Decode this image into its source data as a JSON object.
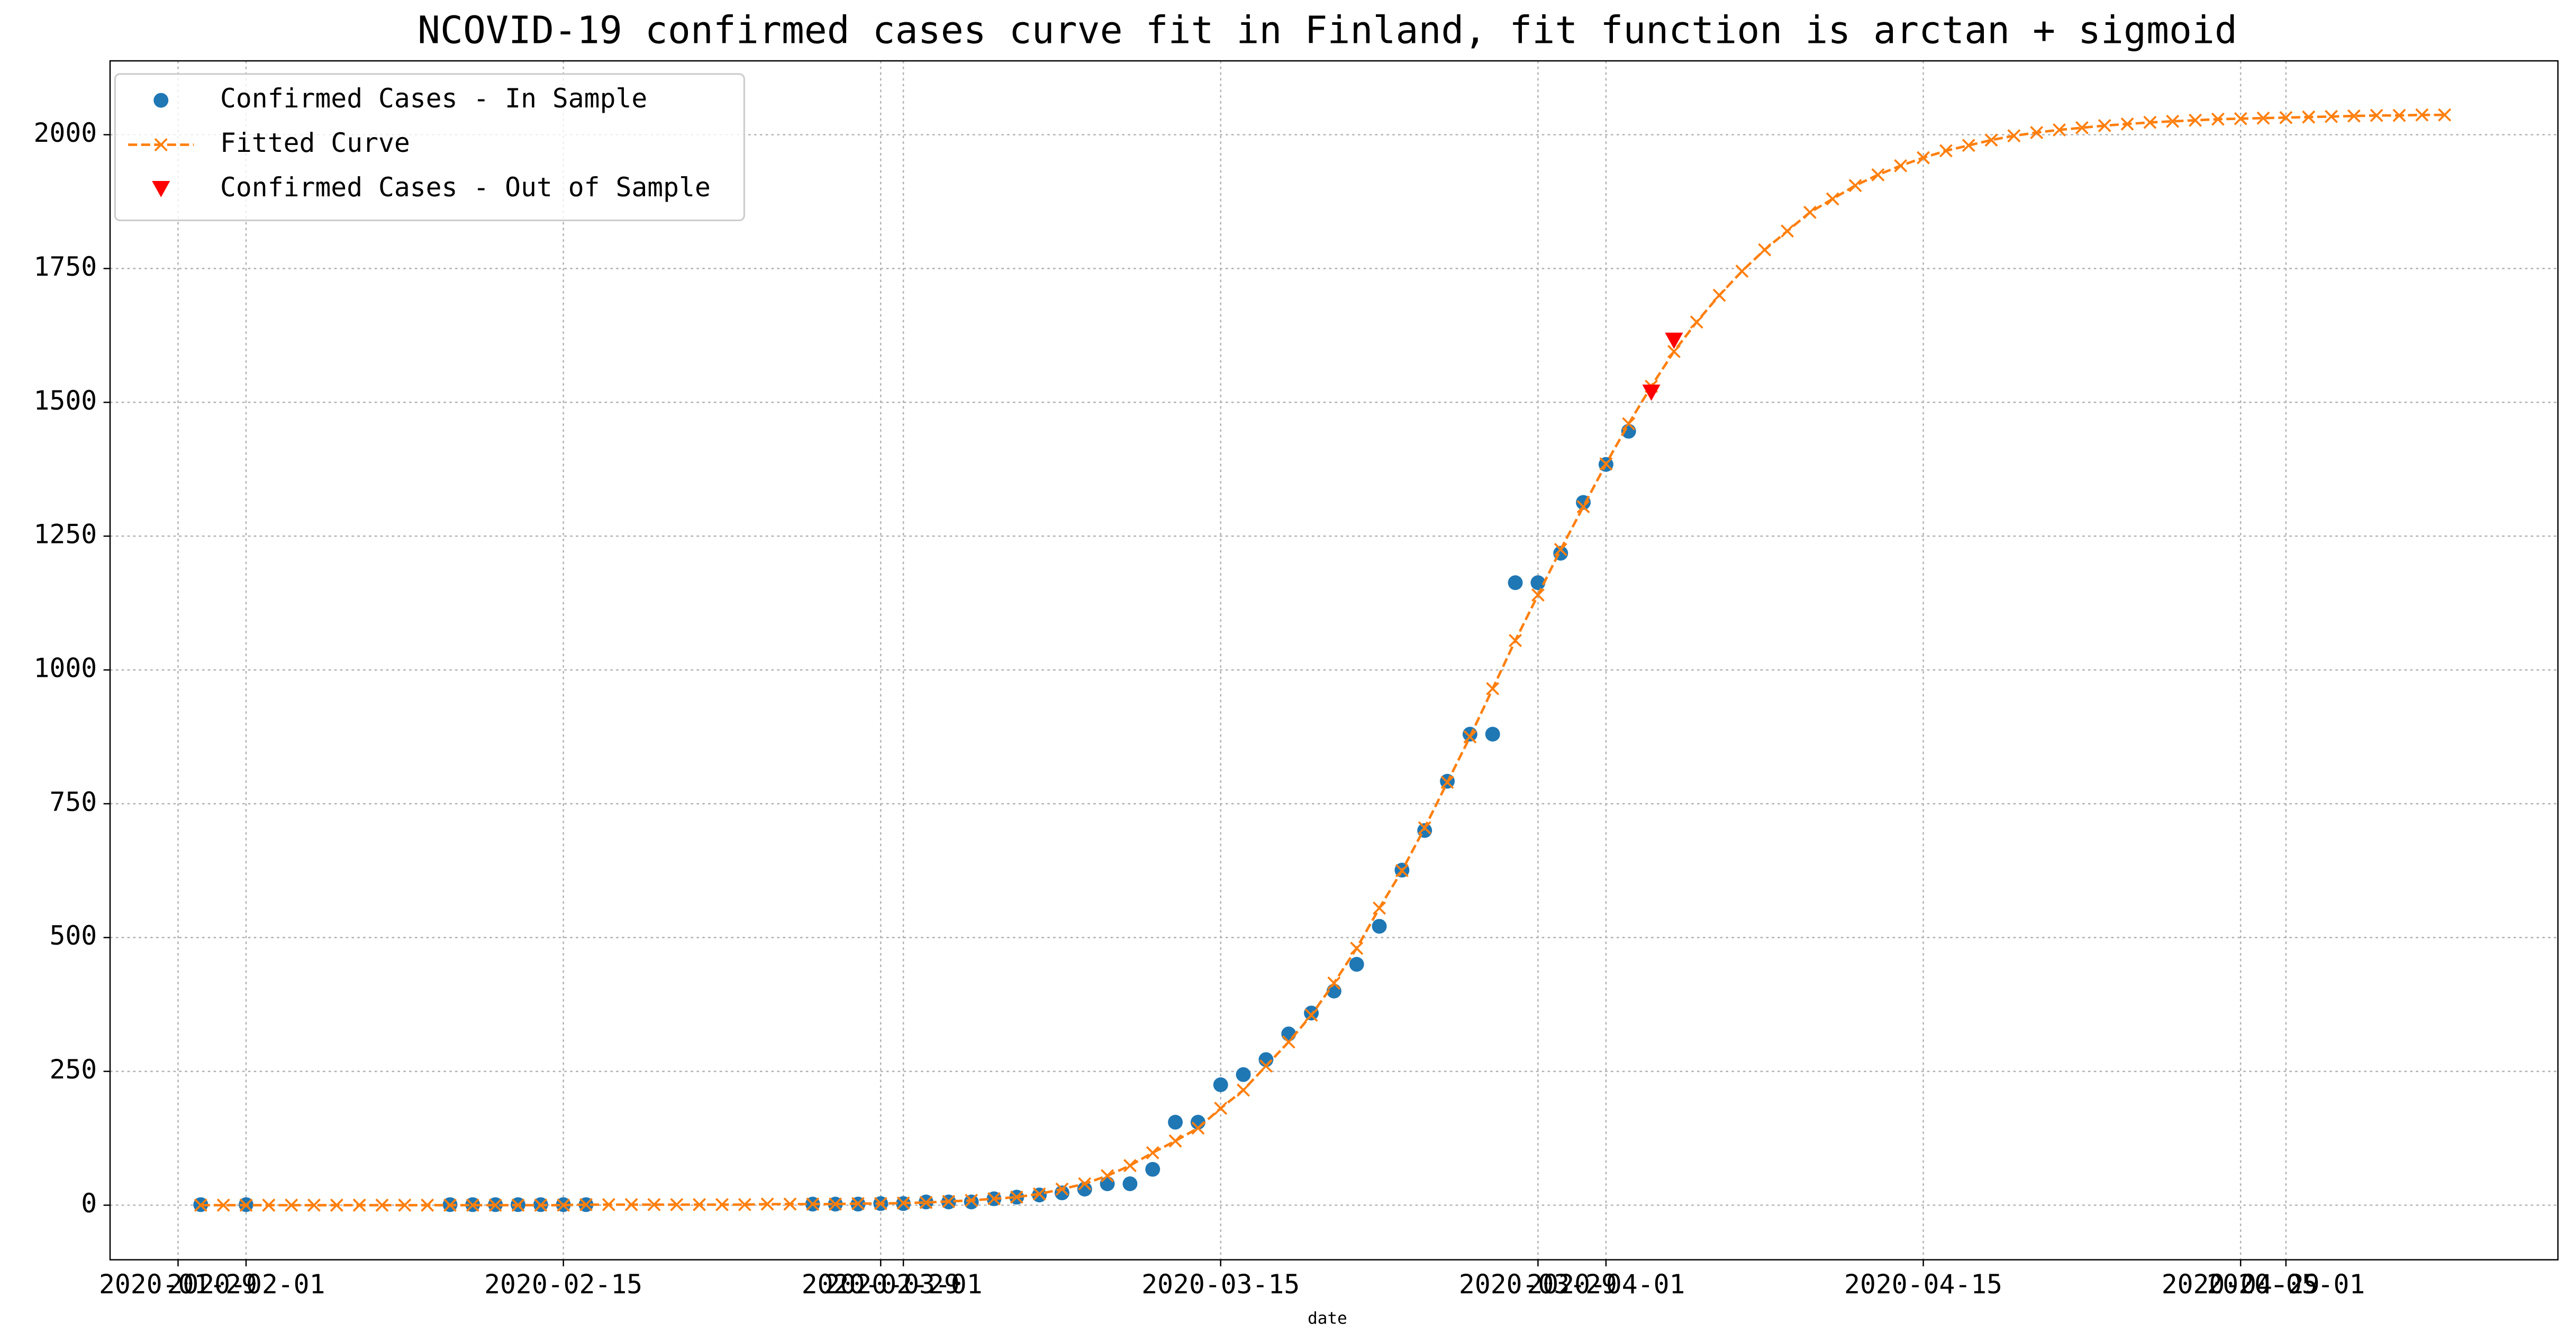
{
  "chart_data": {
    "type": "line",
    "title": "NCOVID-19 confirmed cases curve fit in Finland, fit function is arctan + sigmoid",
    "x_label": "date",
    "xlim": [
      "2020-01-26",
      "2020-05-13"
    ],
    "xticks": [
      "2020-01-29",
      "2020-02-01",
      "2020-02-15",
      "2020-02-29",
      "2020-03-01",
      "2020-03-15",
      "2020-03-29",
      "2020-04-01",
      "2020-04-15",
      "2020-04-29",
      "2020-05-01"
    ],
    "ylim": [
      -102,
      2138
    ],
    "yticks": [
      0,
      250,
      500,
      750,
      1000,
      1250,
      1500,
      1750,
      2000
    ],
    "grid": true,
    "legend": "upper left",
    "series": [
      {
        "name": "Confirmed Cases - In Sample",
        "color": "#1f77b4",
        "marker": "o",
        "linestyle": "none",
        "x": [
          "2020-01-30",
          "2020-02-01",
          "2020-02-10",
          "2020-02-11",
          "2020-02-12",
          "2020-02-13",
          "2020-02-14",
          "2020-02-15",
          "2020-02-16",
          "2020-02-26",
          "2020-02-27",
          "2020-02-28",
          "2020-02-29",
          "2020-03-01",
          "2020-03-02",
          "2020-03-03",
          "2020-03-04",
          "2020-03-05",
          "2020-03-06",
          "2020-03-07",
          "2020-03-08",
          "2020-03-09",
          "2020-03-10",
          "2020-03-11",
          "2020-03-12",
          "2020-03-13",
          "2020-03-14",
          "2020-03-15",
          "2020-03-16",
          "2020-03-17",
          "2020-03-18",
          "2020-03-19",
          "2020-03-20",
          "2020-03-21",
          "2020-03-22",
          "2020-03-23",
          "2020-03-24",
          "2020-03-25",
          "2020-03-26",
          "2020-03-27",
          "2020-03-28",
          "2020-03-29",
          "2020-03-30",
          "2020-03-31",
          "2020-04-01",
          "2020-04-02"
        ],
        "values": [
          1,
          1,
          1,
          1,
          1,
          1,
          1,
          1,
          1,
          2,
          2,
          2,
          3,
          3,
          6,
          6,
          6,
          12,
          15,
          19,
          23,
          30,
          40,
          40,
          67,
          155,
          155,
          225,
          244,
          272,
          320,
          359,
          400,
          450,
          521,
          626,
          700,
          792,
          880,
          880,
          1163,
          1163,
          1218,
          1313,
          1384,
          1446
        ]
      },
      {
        "name": "Fitted Curve",
        "color": "#ff7f0e",
        "marker": "x",
        "linestyle": "dashed",
        "x": [
          "2020-01-30",
          "2020-01-31",
          "2020-02-01",
          "2020-02-02",
          "2020-02-03",
          "2020-02-04",
          "2020-02-05",
          "2020-02-06",
          "2020-02-07",
          "2020-02-08",
          "2020-02-09",
          "2020-02-10",
          "2020-02-11",
          "2020-02-12",
          "2020-02-13",
          "2020-02-14",
          "2020-02-15",
          "2020-02-16",
          "2020-02-17",
          "2020-02-18",
          "2020-02-19",
          "2020-02-20",
          "2020-02-21",
          "2020-02-22",
          "2020-02-23",
          "2020-02-24",
          "2020-02-25",
          "2020-02-26",
          "2020-02-27",
          "2020-02-28",
          "2020-02-29",
          "2020-03-01",
          "2020-03-02",
          "2020-03-03",
          "2020-03-04",
          "2020-03-05",
          "2020-03-06",
          "2020-03-07",
          "2020-03-08",
          "2020-03-09",
          "2020-03-10",
          "2020-03-11",
          "2020-03-12",
          "2020-03-13",
          "2020-03-14",
          "2020-03-15",
          "2020-03-16",
          "2020-03-17",
          "2020-03-18",
          "2020-03-19",
          "2020-03-20",
          "2020-03-21",
          "2020-03-22",
          "2020-03-23",
          "2020-03-24",
          "2020-03-25",
          "2020-03-26",
          "2020-03-27",
          "2020-03-28",
          "2020-03-29",
          "2020-03-30",
          "2020-03-31",
          "2020-04-01",
          "2020-04-02",
          "2020-04-03",
          "2020-04-04",
          "2020-04-05",
          "2020-04-06",
          "2020-04-07",
          "2020-04-08",
          "2020-04-09",
          "2020-04-10",
          "2020-04-11",
          "2020-04-12",
          "2020-04-13",
          "2020-04-14",
          "2020-04-15",
          "2020-04-16",
          "2020-04-17",
          "2020-04-18",
          "2020-04-19",
          "2020-04-20",
          "2020-04-21",
          "2020-04-22",
          "2020-04-23",
          "2020-04-24",
          "2020-04-25",
          "2020-04-26",
          "2020-04-27",
          "2020-04-28",
          "2020-04-29",
          "2020-04-30",
          "2020-05-01",
          "2020-05-02",
          "2020-05-03",
          "2020-05-04",
          "2020-05-05",
          "2020-05-06",
          "2020-05-07",
          "2020-05-08"
        ],
        "values": [
          0,
          0,
          0,
          0,
          0,
          0,
          0,
          0,
          0,
          0,
          0,
          0,
          0,
          0,
          0,
          0,
          0,
          1,
          1,
          1,
          1,
          1,
          1,
          1,
          1,
          2,
          2,
          2,
          2,
          3,
          3,
          4,
          5,
          7,
          9,
          12,
          15,
          21,
          30,
          40,
          55,
          74,
          98,
          120,
          144,
          181,
          215,
          260,
          305,
          355,
          415,
          480,
          555,
          625,
          705,
          790,
          875,
          965,
          1055,
          1140,
          1225,
          1305,
          1385,
          1460,
          1530,
          1595,
          1650,
          1700,
          1745,
          1785,
          1820,
          1855,
          1880,
          1905,
          1925,
          1942,
          1957,
          1970,
          1980,
          1990,
          1998,
          2004,
          2009,
          2013,
          2017,
          2020,
          2023,
          2025,
          2027,
          2029,
          2030,
          2031,
          2032,
          2033,
          2034,
          2035,
          2036,
          2036,
          2037,
          2037
        ]
      },
      {
        "name": "Confirmed Cases - Out of Sample",
        "color": "#ff0000",
        "marker": "v",
        "linestyle": "none",
        "x": [
          "2020-04-03",
          "2020-04-04"
        ],
        "values": [
          1518,
          1615
        ]
      }
    ]
  }
}
